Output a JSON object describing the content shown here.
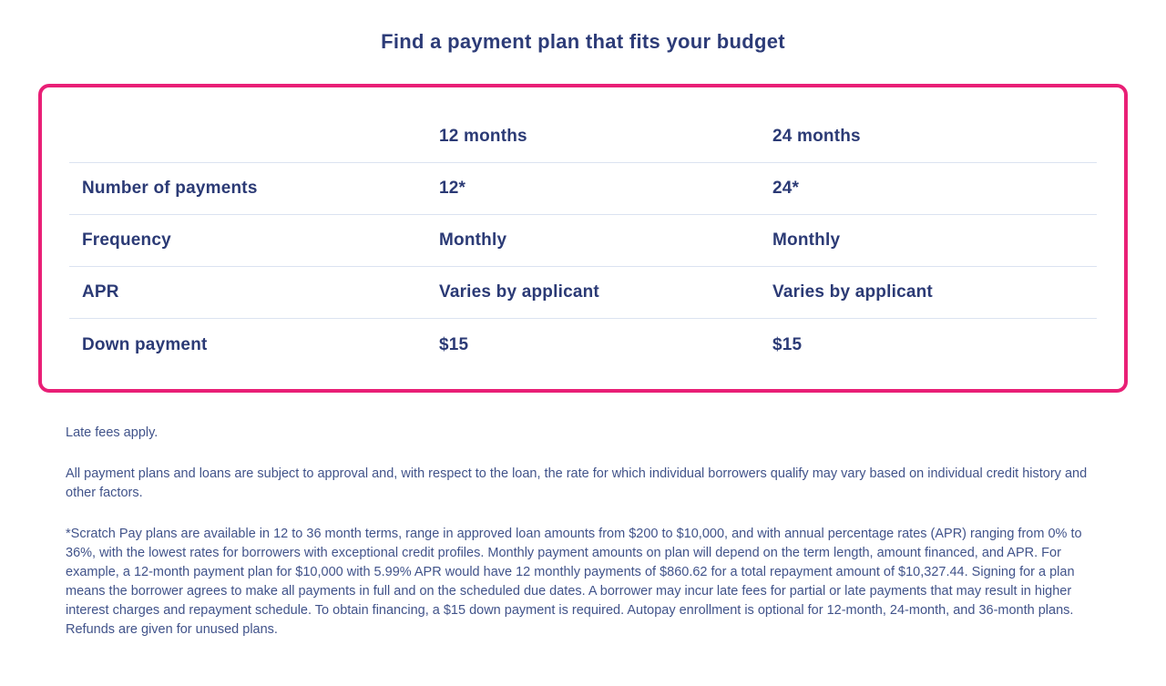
{
  "page": {
    "title": "Find a payment plan that fits your budget"
  },
  "table": {
    "columns": [
      "",
      "12 months",
      "24 months"
    ],
    "rows": [
      {
        "label": "Number of payments",
        "values": [
          "12*",
          "24*"
        ]
      },
      {
        "label": "Frequency",
        "values": [
          "Monthly",
          "Monthly"
        ]
      },
      {
        "label": "APR",
        "values": [
          "Varies by applicant",
          "Varies by applicant"
        ]
      },
      {
        "label": "Down payment",
        "values": [
          "$15",
          "$15"
        ]
      }
    ]
  },
  "disclaimers": [
    "Late fees apply.",
    "All payment plans and loans are subject to approval and, with respect to the loan, the rate for which individual borrowers qualify may vary based on individual credit history and other factors.",
    "*Scratch Pay plans are available in 12 to 36 month terms, range in approved loan amounts from $200 to $10,000, and with annual percentage rates (APR) ranging from 0% to 36%, with the lowest rates for borrowers with exceptional credit profiles. Monthly payment amounts on plan will depend on the term length, amount financed, and APR. For example, a 12-month payment plan for $10,000 with 5.99% APR would have 12 monthly payments of $860.62 for a total repayment amount of $10,327.44. Signing for a plan means the borrower agrees to make all payments in full and on the scheduled due dates. A borrower may incur late fees for partial or late payments that may result in higher interest charges and repayment schedule. To obtain financing, a $15 down payment is required. Autopay enrollment is optional for 12-month, 24-month, and 36-month plans. Refunds are given for unused plans."
  ],
  "colors": {
    "accent_pink": "#e91f76",
    "table_text_navy": "#2b3a75",
    "title_navy": "#2d3c78",
    "body_text": "#41538a",
    "row_divider": "#dbe3f1"
  }
}
